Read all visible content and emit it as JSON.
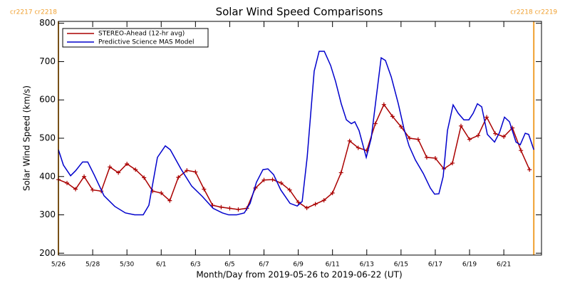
{
  "chart_data": {
    "type": "line",
    "title": "Solar Wind Speed Comparisons",
    "xlabel": "Month/Day from 2019-05-26 to 2019-06-22 (UT)",
    "ylabel": "Solar Wind Speed (km/s)",
    "xlim": [
      0,
      28.2
    ],
    "ylim": [
      195,
      805
    ],
    "xticks": [
      {
        "value": 0,
        "label": "5/26"
      },
      {
        "value": 2,
        "label": "5/28"
      },
      {
        "value": 4,
        "label": "5/30"
      },
      {
        "value": 6,
        "label": "6/1"
      },
      {
        "value": 8,
        "label": "6/3"
      },
      {
        "value": 10,
        "label": "6/5"
      },
      {
        "value": 12,
        "label": "6/7"
      },
      {
        "value": 14,
        "label": "6/9"
      },
      {
        "value": 16,
        "label": "6/11"
      },
      {
        "value": 18,
        "label": "6/13"
      },
      {
        "value": 20,
        "label": "6/15"
      },
      {
        "value": 22,
        "label": "6/17"
      },
      {
        "value": 24,
        "label": "6/19"
      },
      {
        "value": 26,
        "label": "6/21"
      }
    ],
    "yticks": [
      200,
      300,
      400,
      500,
      600,
      700,
      800
    ],
    "legend": "upper left",
    "annotations": [
      {
        "text": "cr2217 cr2218",
        "x": 0,
        "color": "#f0a030"
      },
      {
        "text": "cr2218 cr2219",
        "x": 27.75,
        "color": "#f0a030"
      }
    ],
    "series": [
      {
        "name": "STEREO-Ahead (12-hr avg)",
        "color": "#aa0000",
        "markers": true,
        "x": [
          0,
          0.5,
          1,
          1.5,
          2,
          2.5,
          3,
          3.5,
          4,
          4.5,
          5,
          5.5,
          6,
          6.5,
          7,
          7.5,
          8,
          8.5,
          9,
          9.5,
          10,
          10.5,
          11,
          11.5,
          12,
          12.5,
          13,
          13.5,
          14,
          14.5,
          15,
          15.5,
          16,
          16.5,
          17,
          17.5,
          18,
          18.5,
          19,
          19.5,
          20,
          20.5,
          21,
          21.5,
          22,
          22.5,
          23,
          23.5,
          24,
          24.5,
          25,
          25.5,
          26,
          26.5,
          27,
          27.5
        ],
        "values": [
          392,
          383,
          367,
          400,
          365,
          362,
          425,
          410,
          433,
          418,
          397,
          362,
          357,
          337,
          398,
          416,
          412,
          367,
          325,
          320,
          317,
          314,
          317,
          370,
          391,
          392,
          383,
          365,
          333,
          318,
          328,
          338,
          357,
          410,
          493,
          475,
          468,
          538,
          588,
          557,
          530,
          500,
          497,
          450,
          448,
          420,
          435,
          532,
          497,
          507,
          555,
          512,
          504,
          527,
          468,
          418
        ]
      },
      {
        "name": "Predictive Science MAS Model",
        "color": "#0000cc",
        "markers": false,
        "x": [
          0,
          0.29,
          0.71,
          1.0,
          1.41,
          1.71,
          2.08,
          2.66,
          3.29,
          3.91,
          4.45,
          4.95,
          5.28,
          5.78,
          6.24,
          6.53,
          7.15,
          7.78,
          8.4,
          9.03,
          9.57,
          9.94,
          10.4,
          10.85,
          11.19,
          11.56,
          11.94,
          12.23,
          12.56,
          12.98,
          13.52,
          13.94,
          14.23,
          14.52,
          14.93,
          15.22,
          15.52,
          15.89,
          16.18,
          16.51,
          16.81,
          17.1,
          17.3,
          17.55,
          17.97,
          18.26,
          18.59,
          18.84,
          19.09,
          19.43,
          19.84,
          20.17,
          20.47,
          20.84,
          21.3,
          21.71,
          21.96,
          22.21,
          22.46,
          22.71,
          23.04,
          23.34,
          23.67,
          23.96,
          24.21,
          24.46,
          24.71,
          25.04,
          25.46,
          25.75,
          26.04,
          26.33,
          26.71,
          26.96,
          27.25,
          27.45,
          27.75
        ],
        "values": [
          470,
          430,
          402,
          415,
          438,
          438,
          405,
          350,
          322,
          305,
          300,
          300,
          325,
          450,
          480,
          470,
          420,
          375,
          348,
          317,
          305,
          300,
          300,
          305,
          330,
          385,
          418,
          420,
          405,
          365,
          330,
          323,
          335,
          450,
          675,
          727,
          727,
          690,
          648,
          590,
          548,
          538,
          543,
          520,
          450,
          500,
          620,
          710,
          703,
          660,
          590,
          525,
          480,
          443,
          408,
          370,
          354,
          355,
          400,
          520,
          587,
          565,
          548,
          548,
          565,
          590,
          582,
          510,
          490,
          515,
          555,
          543,
          490,
          483,
          513,
          510,
          470
        ]
      }
    ]
  }
}
